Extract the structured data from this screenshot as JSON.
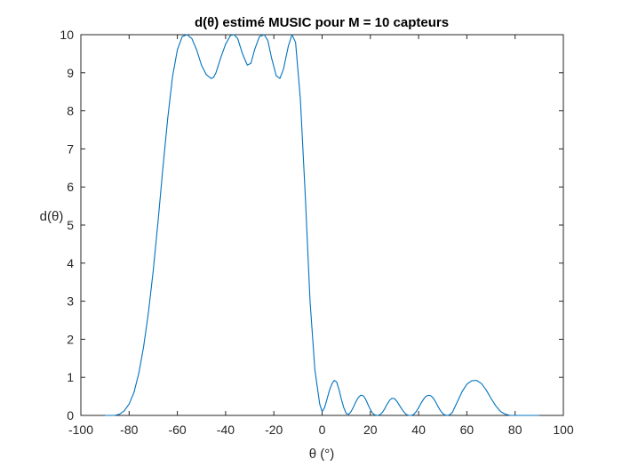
{
  "chart_data": {
    "type": "line",
    "title": "d(θ) estimé MUSIC pour  M = 10 capteurs",
    "xlabel": "θ (°)",
    "ylabel": "d(θ)",
    "xlim": [
      -100,
      100
    ],
    "ylim": [
      0,
      10
    ],
    "xticks": [
      "-100",
      "-80",
      "-60",
      "-40",
      "-20",
      "0",
      "20",
      "40",
      "60",
      "80",
      "100"
    ],
    "yticks": [
      "0",
      "1",
      "2",
      "3",
      "4",
      "5",
      "6",
      "7",
      "8",
      "9",
      "10"
    ],
    "grid": false,
    "series": [
      {
        "color": "#0072BD",
        "x": [
          -90,
          -86,
          -84,
          -82,
          -80,
          -78,
          -76,
          -74,
          -72,
          -70,
          -68,
          -66,
          -64,
          -62,
          -60,
          -58,
          -56,
          -54,
          -52,
          -50,
          -48,
          -46,
          -45,
          -44,
          -42,
          -40,
          -38,
          -36.5,
          -35,
          -33,
          -31,
          -29.5,
          -28,
          -26,
          -24,
          -22.5,
          -21,
          -19,
          -17.5,
          -16,
          -14,
          -12.5,
          -11,
          -9,
          -7,
          -5,
          -3,
          -1,
          0,
          1,
          2,
          3,
          4,
          5,
          6,
          7,
          8,
          9,
          10,
          11,
          12,
          13,
          14,
          15,
          16,
          17,
          18,
          19,
          20,
          21,
          22,
          23,
          24,
          25,
          26,
          27,
          28,
          29,
          30,
          31,
          32,
          33,
          34,
          35,
          36,
          37,
          38,
          39,
          40,
          41,
          42,
          43,
          44,
          45,
          46,
          47,
          48,
          49,
          50,
          51,
          52,
          53,
          54,
          56,
          58,
          60,
          62,
          64,
          66,
          68,
          70,
          72,
          74,
          76,
          78,
          80,
          82,
          84,
          86,
          88,
          90
        ],
        "y": [
          0.0,
          0.0,
          0.03,
          0.12,
          0.3,
          0.6,
          1.1,
          1.8,
          2.7,
          3.8,
          5.1,
          6.5,
          7.8,
          8.9,
          9.6,
          9.95,
          10.0,
          9.9,
          9.6,
          9.2,
          8.95,
          8.85,
          8.88,
          9.0,
          9.4,
          9.75,
          9.98,
          10.0,
          9.9,
          9.5,
          9.2,
          9.25,
          9.6,
          9.95,
          10.0,
          9.85,
          9.4,
          8.92,
          8.85,
          9.1,
          9.7,
          10.0,
          9.8,
          8.3,
          5.8,
          3.0,
          1.2,
          0.3,
          0.1,
          0.2,
          0.42,
          0.65,
          0.82,
          0.92,
          0.88,
          0.68,
          0.42,
          0.2,
          0.05,
          0.03,
          0.1,
          0.22,
          0.36,
          0.47,
          0.53,
          0.52,
          0.43,
          0.29,
          0.15,
          0.05,
          0.01,
          0.0,
          0.02,
          0.08,
          0.18,
          0.3,
          0.4,
          0.45,
          0.44,
          0.37,
          0.27,
          0.17,
          0.08,
          0.02,
          0.0,
          0.0,
          0.03,
          0.1,
          0.2,
          0.32,
          0.42,
          0.5,
          0.53,
          0.52,
          0.46,
          0.36,
          0.24,
          0.13,
          0.05,
          0.01,
          0.0,
          0.02,
          0.08,
          0.35,
          0.62,
          0.82,
          0.91,
          0.92,
          0.84,
          0.67,
          0.45,
          0.25,
          0.1,
          0.03,
          0.0,
          0.0,
          0.0,
          0.0,
          0.0,
          0.0,
          0.0
        ]
      }
    ]
  }
}
